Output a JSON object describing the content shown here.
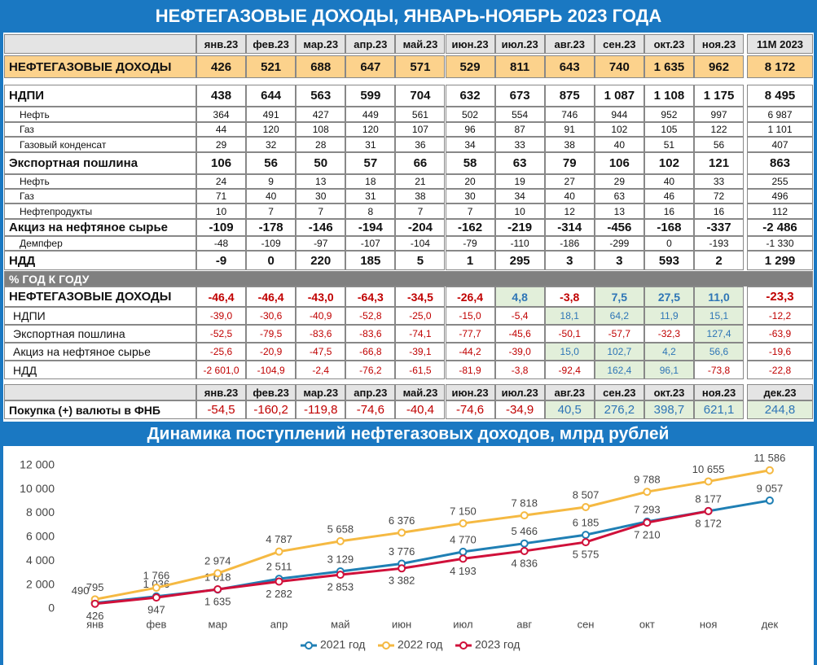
{
  "header": {
    "title": "НЕФТЕГАЗОВЫЕ ДОХОДЫ, ЯНВАРЬ-НОЯБРЬ 2023 ГОДА"
  },
  "table": {
    "columns": [
      "янв.23",
      "фев.23",
      "мар.23",
      "апр.23",
      "май.23",
      "июн.23",
      "июл.23",
      "авг.23",
      "сен.23",
      "окт.23",
      "ноя.23"
    ],
    "total_header": "11M 2023",
    "rows": [
      {
        "label": "НЕФТЕГАЗОВЫЕ ДОХОДЫ",
        "values": [
          "426",
          "521",
          "688",
          "647",
          "571",
          "529",
          "811",
          "643",
          "740",
          "1 635",
          "962"
        ],
        "total": "8 172"
      },
      {
        "label": "НДПИ",
        "values": [
          "438",
          "644",
          "563",
          "599",
          "704",
          "632",
          "673",
          "875",
          "1 087",
          "1 108",
          "1 175"
        ],
        "total": "8 495"
      },
      {
        "label": "Нефть",
        "values": [
          "364",
          "491",
          "427",
          "449",
          "561",
          "502",
          "554",
          "746",
          "944",
          "952",
          "997"
        ],
        "total": "6 987"
      },
      {
        "label": "Газ",
        "values": [
          "44",
          "120",
          "108",
          "120",
          "107",
          "96",
          "87",
          "91",
          "102",
          "105",
          "122"
        ],
        "total": "1 101"
      },
      {
        "label": "Газовый конденсат",
        "values": [
          "29",
          "32",
          "28",
          "31",
          "36",
          "34",
          "33",
          "38",
          "40",
          "51",
          "56"
        ],
        "total": "407"
      },
      {
        "label": "Экспортная пошлина",
        "values": [
          "106",
          "56",
          "50",
          "57",
          "66",
          "58",
          "63",
          "79",
          "106",
          "102",
          "121"
        ],
        "total": "863"
      },
      {
        "label": "Нефть",
        "values": [
          "24",
          "9",
          "13",
          "18",
          "21",
          "20",
          "19",
          "27",
          "29",
          "40",
          "33"
        ],
        "total": "255"
      },
      {
        "label": "Газ",
        "values": [
          "71",
          "40",
          "30",
          "31",
          "38",
          "30",
          "34",
          "40",
          "63",
          "46",
          "72"
        ],
        "total": "496"
      },
      {
        "label": "Нефтепродукты",
        "values": [
          "10",
          "7",
          "7",
          "8",
          "7",
          "7",
          "10",
          "12",
          "13",
          "16",
          "16"
        ],
        "total": "112"
      },
      {
        "label": "Акциз на нефтяное сырье",
        "values": [
          "-109",
          "-178",
          "-146",
          "-194",
          "-204",
          "-162",
          "-219",
          "-314",
          "-456",
          "-168",
          "-337"
        ],
        "total": "-2 486"
      },
      {
        "label": "Демпфер",
        "values": [
          "-48",
          "-109",
          "-97",
          "-107",
          "-104",
          "-79",
          "-110",
          "-186",
          "-299",
          "0",
          "-193"
        ],
        "total": "-1 330"
      },
      {
        "label": "НДД",
        "values": [
          "-9",
          "0",
          "220",
          "185",
          "5",
          "1",
          "295",
          "3",
          "3",
          "593",
          "2"
        ],
        "total": "1 299"
      }
    ]
  },
  "yoy": {
    "title": "% ГОД К ГОДУ",
    "rows": [
      {
        "label": "НЕФТЕГАЗОВЫЕ ДОХОДЫ",
        "values": [
          "-46,4",
          "-46,4",
          "-43,0",
          "-64,3",
          "-34,5",
          "-26,4",
          "4,8",
          "-3,8",
          "7,5",
          "27,5",
          "11,0"
        ],
        "total": "-23,3"
      },
      {
        "label": "НДПИ",
        "values": [
          "-39,0",
          "-30,6",
          "-40,9",
          "-52,8",
          "-25,0",
          "-15,0",
          "-5,4",
          "18,1",
          "64,2",
          "11,9",
          "15,1"
        ],
        "total": "-12,2"
      },
      {
        "label": "Экспортная пошлина",
        "values": [
          "-52,5",
          "-79,5",
          "-83,6",
          "-83,6",
          "-74,1",
          "-77,7",
          "-45,6",
          "-50,1",
          "-57,7",
          "-32,3",
          "127,4"
        ],
        "total": "-63,9"
      },
      {
        "label": "Акциз на нефтяное сырье",
        "values": [
          "-25,6",
          "-20,9",
          "-47,5",
          "-66,8",
          "-39,1",
          "-44,2",
          "-39,0",
          "15,0",
          "102,7",
          "4,2",
          "56,6"
        ],
        "total": "-19,6"
      },
      {
        "label": "НДД",
        "values": [
          "-2 601,0",
          "-104,9",
          "-2,4",
          "-76,2",
          "-61,5",
          "-81,9",
          "-3,8",
          "-92,4",
          "162,4",
          "96,1",
          "-73,8"
        ],
        "total": "-22,8"
      }
    ]
  },
  "fx": {
    "columns": [
      "янв.23",
      "фев.23",
      "мар.23",
      "апр.23",
      "май.23",
      "июн.23",
      "июл.23",
      "авг.23",
      "сен.23",
      "окт.23",
      "ноя.23",
      "дек.23"
    ],
    "label": "Покупка (+) валюты в ФНБ",
    "values": [
      "-54,5",
      "-160,2",
      "-119,8",
      "-74,6",
      "-40,4",
      "-74,6",
      "-34,9",
      "40,5",
      "276,2",
      "398,7",
      "621,1",
      "244,8"
    ]
  },
  "chart_data": {
    "type": "line",
    "title": "Динамика поступлений нефтегазовых доходов, млрд рублей",
    "categories": [
      "янв",
      "фев",
      "мар",
      "апр",
      "май",
      "июн",
      "июл",
      "авг",
      "сен",
      "окт",
      "ноя",
      "дек"
    ],
    "ylim": [
      0,
      13000
    ],
    "yticks": [
      0,
      {
        "value": 2000,
        "label": "2 000"
      },
      {
        "value": 4000,
        "label": "4 000"
      },
      {
        "value": 6000,
        "label": "6 000"
      },
      {
        "value": 8000,
        "label": "8 000"
      },
      {
        "value": 10000,
        "label": "10 000"
      },
      {
        "value": 12000,
        "label": "12 000"
      }
    ],
    "grid": false,
    "legend": "bottom",
    "series": [
      {
        "name": "2021 год",
        "color": "#1f7fb4",
        "values": [
          490,
          1036,
          1618,
          2511,
          3129,
          3776,
          4770,
          5466,
          6185,
          7293,
          8177,
          9057
        ],
        "value_labels": [
          "490",
          "1 036",
          "1 618",
          "2 511",
          "3 129",
          "3 776",
          "4 770",
          "5 466",
          "6 185",
          "7 293",
          "8 177",
          "9 057"
        ]
      },
      {
        "name": "2022 год",
        "color": "#f5b942",
        "values": [
          795,
          1766,
          2974,
          4787,
          5658,
          6376,
          7150,
          7818,
          8507,
          9788,
          10655,
          11586
        ],
        "value_labels": [
          "795",
          "1 766",
          "2 974",
          "4 787",
          "5 658",
          "6 376",
          "7 150",
          "7 818",
          "8 507",
          "9 788",
          "10 655",
          "11 586"
        ]
      },
      {
        "name": "2023 год",
        "color": "#d0103a",
        "values": [
          426,
          947,
          1635,
          2282,
          2853,
          3382,
          4193,
          4836,
          5575,
          7210,
          8172,
          null
        ],
        "value_labels": [
          "426",
          "947",
          "1 635",
          "2 282",
          "2 853",
          "3 382",
          "4 193",
          "4 836",
          "5 575",
          "7 210",
          "8 172",
          null
        ]
      }
    ]
  }
}
